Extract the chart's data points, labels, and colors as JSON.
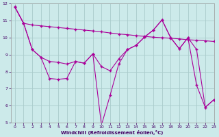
{
  "xlabel": "Windchill (Refroidissement éolien,°C)",
  "ylabel": "",
  "bg_color": "#cceaea",
  "grid_color": "#aacccc",
  "line_color": "#aa0099",
  "xlim": [
    -0.5,
    23
  ],
  "ylim": [
    5,
    12
  ],
  "yticks": [
    5,
    6,
    7,
    8,
    9,
    10,
    11,
    12
  ],
  "xticks": [
    0,
    1,
    2,
    3,
    4,
    5,
    6,
    7,
    8,
    9,
    10,
    11,
    12,
    13,
    14,
    15,
    16,
    17,
    18,
    19,
    20,
    21,
    22,
    23
  ],
  "line1_x": [
    0,
    1,
    2,
    3,
    4,
    5,
    6,
    7,
    8,
    9,
    10,
    11,
    12,
    13,
    14,
    15,
    16,
    17,
    18,
    19,
    20,
    21,
    22,
    23
  ],
  "line1_y": [
    11.8,
    10.85,
    10.75,
    10.7,
    10.65,
    10.6,
    10.55,
    10.5,
    10.45,
    10.4,
    10.35,
    10.28,
    10.22,
    10.18,
    10.12,
    10.08,
    10.03,
    10.0,
    9.97,
    9.93,
    9.88,
    9.85,
    9.82,
    9.78
  ],
  "line2_x": [
    0,
    1,
    2,
    3,
    4,
    5,
    6,
    7,
    8,
    9,
    10,
    11,
    12,
    13,
    14,
    15,
    16,
    17,
    18,
    19,
    20,
    21,
    22,
    23
  ],
  "line2_y": [
    11.8,
    10.85,
    9.3,
    8.85,
    8.6,
    8.55,
    8.45,
    8.6,
    8.5,
    9.05,
    8.3,
    8.05,
    8.75,
    9.3,
    9.55,
    10.05,
    10.45,
    11.05,
    10.0,
    9.35,
    10.0,
    9.3,
    5.9,
    6.35
  ],
  "line3_x": [
    0,
    1,
    2,
    3,
    4,
    5,
    6,
    7,
    8,
    9,
    10,
    11,
    12,
    13,
    14,
    15,
    16,
    17,
    18,
    19,
    20,
    21,
    22,
    23
  ],
  "line3_y": [
    11.8,
    10.85,
    9.3,
    8.85,
    7.6,
    7.55,
    7.6,
    8.6,
    8.5,
    9.05,
    4.85,
    6.6,
    8.45,
    9.3,
    9.55,
    10.05,
    10.45,
    11.05,
    10.0,
    9.35,
    10.0,
    7.2,
    5.9,
    6.35
  ]
}
